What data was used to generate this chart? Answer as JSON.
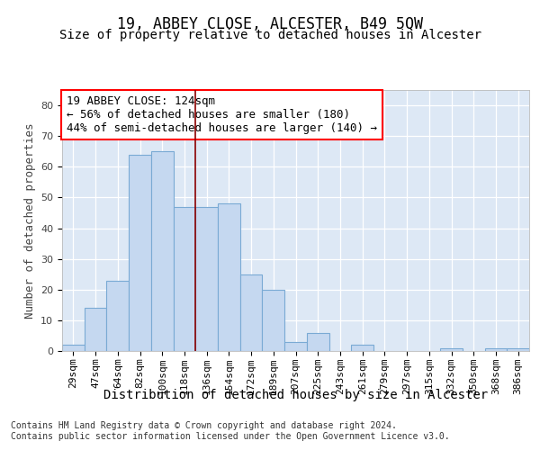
{
  "title": "19, ABBEY CLOSE, ALCESTER, B49 5QW",
  "subtitle": "Size of property relative to detached houses in Alcester",
  "xlabel": "Distribution of detached houses by size in Alcester",
  "ylabel": "Number of detached properties",
  "categories": [
    "29sqm",
    "47sqm",
    "64sqm",
    "82sqm",
    "100sqm",
    "118sqm",
    "136sqm",
    "154sqm",
    "172sqm",
    "189sqm",
    "207sqm",
    "225sqm",
    "243sqm",
    "261sqm",
    "279sqm",
    "297sqm",
    "315sqm",
    "332sqm",
    "350sqm",
    "368sqm",
    "386sqm"
  ],
  "values": [
    2,
    14,
    23,
    64,
    65,
    47,
    47,
    48,
    25,
    20,
    3,
    6,
    0,
    2,
    0,
    0,
    0,
    1,
    0,
    1,
    1
  ],
  "bar_color": "#c5d8f0",
  "bar_edge_color": "#7aaad4",
  "background_color": "#dde8f5",
  "red_line_x": 5.5,
  "annotation_title": "19 ABBEY CLOSE: 124sqm",
  "annotation_line1": "← 56% of detached houses are smaller (180)",
  "annotation_line2": "44% of semi-detached houses are larger (140) →",
  "footer1": "Contains HM Land Registry data © Crown copyright and database right 2024.",
  "footer2": "Contains public sector information licensed under the Open Government Licence v3.0.",
  "ylim": [
    0,
    85
  ],
  "yticks": [
    0,
    10,
    20,
    30,
    40,
    50,
    60,
    70,
    80
  ],
  "title_fontsize": 12,
  "subtitle_fontsize": 10,
  "xlabel_fontsize": 10,
  "ylabel_fontsize": 9,
  "tick_fontsize": 8,
  "annotation_fontsize": 9,
  "footer_fontsize": 7
}
